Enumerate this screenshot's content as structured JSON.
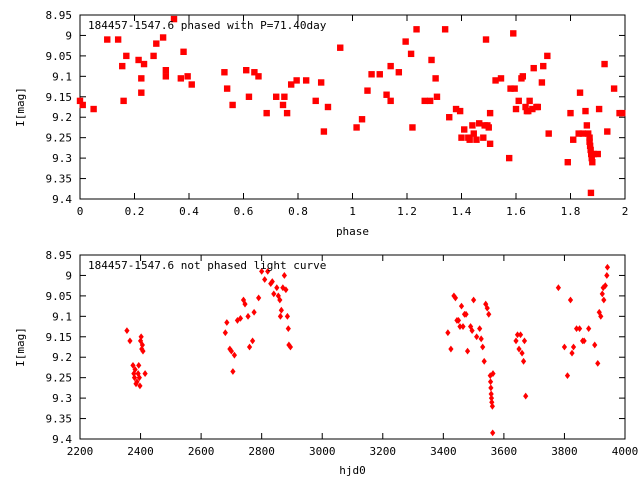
{
  "chart_data": [
    {
      "type": "scatter",
      "title": "184457-1547.6 phased with P=71.40day",
      "xlabel": "phase",
      "ylabel": "I[mag]",
      "xlim": [
        0,
        2
      ],
      "ylim": [
        9.4,
        8.95
      ],
      "y_inverted": true,
      "marker_color": "#ff0000",
      "xticks": [
        "0",
        "0.2",
        "0.4",
        "0.6",
        "0.8",
        "1",
        "1.2",
        "1.4",
        "1.6",
        "1.8",
        "2"
      ],
      "yticks": [
        "8.95",
        "9",
        "9.05",
        "9.1",
        "9.15",
        "9.2",
        "9.25",
        "9.3",
        "9.35",
        "9.4"
      ],
      "series": [
        {
          "points": [
            [
              0.0,
              9.16
            ],
            [
              0.01,
              9.17
            ],
            [
              0.05,
              9.18
            ],
            [
              0.1,
              9.01
            ],
            [
              0.14,
              9.01
            ],
            [
              0.155,
              9.075
            ],
            [
              0.16,
              9.16
            ],
            [
              0.17,
              9.05
            ],
            [
              0.215,
              9.06
            ],
            [
              0.225,
              9.105
            ],
            [
              0.225,
              9.14
            ],
            [
              0.235,
              9.07
            ],
            [
              0.27,
              9.05
            ],
            [
              0.28,
              9.02
            ],
            [
              0.305,
              9.005
            ],
            [
              0.315,
              9.085
            ],
            [
              0.315,
              9.1
            ],
            [
              0.345,
              8.96
            ],
            [
              0.37,
              9.105
            ],
            [
              0.38,
              9.04
            ],
            [
              0.395,
              9.1
            ],
            [
              0.41,
              9.12
            ],
            [
              0.53,
              9.09
            ],
            [
              0.54,
              9.13
            ],
            [
              0.56,
              9.17
            ],
            [
              0.61,
              9.085
            ],
            [
              0.62,
              9.15
            ],
            [
              0.64,
              9.09
            ],
            [
              0.655,
              9.1
            ],
            [
              0.685,
              9.19
            ],
            [
              0.72,
              9.15
            ],
            [
              0.745,
              9.17
            ],
            [
              0.75,
              9.15
            ],
            [
              0.76,
              9.19
            ],
            [
              0.775,
              9.12
            ],
            [
              0.795,
              9.11
            ],
            [
              0.83,
              9.11
            ],
            [
              0.865,
              9.16
            ],
            [
              0.885,
              9.115
            ],
            [
              0.895,
              9.235
            ],
            [
              0.91,
              9.175
            ],
            [
              0.955,
              9.03
            ],
            [
              1.015,
              9.225
            ],
            [
              1.035,
              9.205
            ],
            [
              1.055,
              9.135
            ],
            [
              1.07,
              9.095
            ],
            [
              1.1,
              9.095
            ],
            [
              1.125,
              9.145
            ],
            [
              1.14,
              9.16
            ],
            [
              1.14,
              9.075
            ],
            [
              1.17,
              9.09
            ],
            [
              1.195,
              9.015
            ],
            [
              1.215,
              9.045
            ],
            [
              1.22,
              9.225
            ],
            [
              1.235,
              8.985
            ],
            [
              1.265,
              9.16
            ],
            [
              1.285,
              9.16
            ],
            [
              1.29,
              9.06
            ],
            [
              1.305,
              9.105
            ],
            [
              1.31,
              9.15
            ],
            [
              1.34,
              8.985
            ],
            [
              1.355,
              9.2
            ],
            [
              1.38,
              9.18
            ],
            [
              1.395,
              9.185
            ],
            [
              1.4,
              9.25
            ],
            [
              1.41,
              9.23
            ],
            [
              1.425,
              9.25
            ],
            [
              1.43,
              9.255
            ],
            [
              1.44,
              9.22
            ],
            [
              1.445,
              9.24
            ],
            [
              1.455,
              9.255
            ],
            [
              1.465,
              9.215
            ],
            [
              1.48,
              9.25
            ],
            [
              1.485,
              9.22
            ],
            [
              1.49,
              9.01
            ],
            [
              1.495,
              9.22
            ],
            [
              1.5,
              9.225
            ],
            [
              1.505,
              9.19
            ],
            [
              1.505,
              9.265
            ],
            [
              1.525,
              9.11
            ],
            [
              1.545,
              9.105
            ],
            [
              1.575,
              9.3
            ],
            [
              1.58,
              9.13
            ],
            [
              1.59,
              8.995
            ],
            [
              1.595,
              9.13
            ],
            [
              1.6,
              9.18
            ],
            [
              1.61,
              9.16
            ],
            [
              1.62,
              9.105
            ],
            [
              1.625,
              9.1
            ],
            [
              1.635,
              9.175
            ],
            [
              1.64,
              9.185
            ],
            [
              1.645,
              9.185
            ],
            [
              1.65,
              9.16
            ],
            [
              1.66,
              9.18
            ],
            [
              1.665,
              9.08
            ],
            [
              1.675,
              9.175
            ],
            [
              1.68,
              9.175
            ],
            [
              1.695,
              9.115
            ],
            [
              1.7,
              9.075
            ],
            [
              1.715,
              9.05
            ],
            [
              1.72,
              9.24
            ],
            [
              1.79,
              9.31
            ],
            [
              1.8,
              9.19
            ],
            [
              1.81,
              9.255
            ],
            [
              1.83,
              9.24
            ],
            [
              1.835,
              9.14
            ],
            [
              1.845,
              9.24
            ],
            [
              1.855,
              9.185
            ],
            [
              1.86,
              9.22
            ],
            [
              1.865,
              9.24
            ],
            [
              1.87,
              9.25
            ],
            [
              1.87,
              9.26
            ],
            [
              1.872,
              9.27
            ],
            [
              1.874,
              9.28
            ],
            [
              1.876,
              9.29
            ],
            [
              1.878,
              9.3
            ],
            [
              1.88,
              9.31
            ],
            [
              1.875,
              9.385
            ],
            [
              1.885,
              9.29
            ],
            [
              1.9,
              9.29
            ],
            [
              1.905,
              9.18
            ],
            [
              1.925,
              9.07
            ],
            [
              1.935,
              9.235
            ],
            [
              1.96,
              9.13
            ],
            [
              1.98,
              9.19
            ],
            [
              1.99,
              9.19
            ]
          ]
        }
      ]
    },
    {
      "type": "scatter",
      "title": "184457-1547.6 not phased light curve",
      "xlabel": "hjd0",
      "ylabel": "I[mag]",
      "xlim": [
        2200,
        4000
      ],
      "ylim": [
        9.4,
        8.95
      ],
      "y_inverted": true,
      "marker_color": "#ff0000",
      "xticks": [
        "2200",
        "2400",
        "2600",
        "2800",
        "3000",
        "3200",
        "3400",
        "3600",
        "3800",
        "4000"
      ],
      "yticks": [
        "8.95",
        "9",
        "9.05",
        "9.1",
        "9.15",
        "9.2",
        "9.25",
        "9.3",
        "9.35",
        "9.4"
      ],
      "series": [
        {
          "points": [
            [
              2355,
              9.135
            ],
            [
              2365,
              9.16
            ],
            [
              2375,
              9.22
            ],
            [
              2378,
              9.24
            ],
            [
              2380,
              9.25
            ],
            [
              2382,
              9.23
            ],
            [
              2385,
              9.265
            ],
            [
              2388,
              9.26
            ],
            [
              2392,
              9.24
            ],
            [
              2394,
              9.22
            ],
            [
              2396,
              9.25
            ],
            [
              2398,
              9.27
            ],
            [
              2400,
              9.16
            ],
            [
              2402,
              9.15
            ],
            [
              2404,
              9.18
            ],
            [
              2406,
              9.17
            ],
            [
              2408,
              9.185
            ],
            [
              2415,
              9.24
            ],
            [
              2680,
              9.14
            ],
            [
              2685,
              9.115
            ],
            [
              2695,
              9.18
            ],
            [
              2700,
              9.185
            ],
            [
              2705,
              9.235
            ],
            [
              2710,
              9.195
            ],
            [
              2720,
              9.11
            ],
            [
              2730,
              9.105
            ],
            [
              2740,
              9.06
            ],
            [
              2745,
              9.07
            ],
            [
              2755,
              9.1
            ],
            [
              2760,
              9.175
            ],
            [
              2770,
              9.16
            ],
            [
              2775,
              9.09
            ],
            [
              2790,
              9.055
            ],
            [
              2800,
              8.99
            ],
            [
              2810,
              9.01
            ],
            [
              2820,
              8.99
            ],
            [
              2830,
              9.02
            ],
            [
              2835,
              9.015
            ],
            [
              2840,
              9.045
            ],
            [
              2850,
              9.03
            ],
            [
              2855,
              9.05
            ],
            [
              2860,
              9.06
            ],
            [
              2862,
              9.1
            ],
            [
              2865,
              9.085
            ],
            [
              2870,
              9.03
            ],
            [
              2875,
              9.0
            ],
            [
              2880,
              9.035
            ],
            [
              2885,
              9.1
            ],
            [
              2888,
              9.13
            ],
            [
              2890,
              9.17
            ],
            [
              2895,
              9.175
            ],
            [
              3415,
              9.14
            ],
            [
              3425,
              9.18
            ],
            [
              3435,
              9.05
            ],
            [
              3440,
              9.055
            ],
            [
              3445,
              9.11
            ],
            [
              3450,
              9.11
            ],
            [
              3455,
              9.125
            ],
            [
              3460,
              9.075
            ],
            [
              3465,
              9.125
            ],
            [
              3470,
              9.095
            ],
            [
              3475,
              9.095
            ],
            [
              3480,
              9.185
            ],
            [
              3490,
              9.125
            ],
            [
              3495,
              9.135
            ],
            [
              3500,
              9.06
            ],
            [
              3510,
              9.15
            ],
            [
              3520,
              9.13
            ],
            [
              3525,
              9.155
            ],
            [
              3530,
              9.175
            ],
            [
              3535,
              9.21
            ],
            [
              3540,
              9.07
            ],
            [
              3545,
              9.08
            ],
            [
              3550,
              9.095
            ],
            [
              3555,
              9.245
            ],
            [
              3556,
              9.26
            ],
            [
              3557,
              9.275
            ],
            [
              3558,
              9.29
            ],
            [
              3559,
              9.3
            ],
            [
              3560,
              9.31
            ],
            [
              3562,
              9.32
            ],
            [
              3563,
              9.385
            ],
            [
              3564,
              9.24
            ],
            [
              3640,
              9.16
            ],
            [
              3645,
              9.145
            ],
            [
              3650,
              9.18
            ],
            [
              3655,
              9.145
            ],
            [
              3660,
              9.19
            ],
            [
              3665,
              9.21
            ],
            [
              3668,
              9.16
            ],
            [
              3672,
              9.295
            ],
            [
              3780,
              9.03
            ],
            [
              3800,
              9.175
            ],
            [
              3810,
              9.245
            ],
            [
              3820,
              9.06
            ],
            [
              3825,
              9.19
            ],
            [
              3830,
              9.175
            ],
            [
              3840,
              9.13
            ],
            [
              3850,
              9.13
            ],
            [
              3860,
              9.16
            ],
            [
              3865,
              9.16
            ],
            [
              3880,
              9.13
            ],
            [
              3900,
              9.17
            ],
            [
              3910,
              9.215
            ],
            [
              3915,
              9.09
            ],
            [
              3920,
              9.1
            ],
            [
              3925,
              9.045
            ],
            [
              3928,
              9.03
            ],
            [
              3930,
              9.06
            ],
            [
              3935,
              9.025
            ],
            [
              3940,
              9.0
            ],
            [
              3942,
              8.98
            ]
          ]
        }
      ]
    }
  ]
}
